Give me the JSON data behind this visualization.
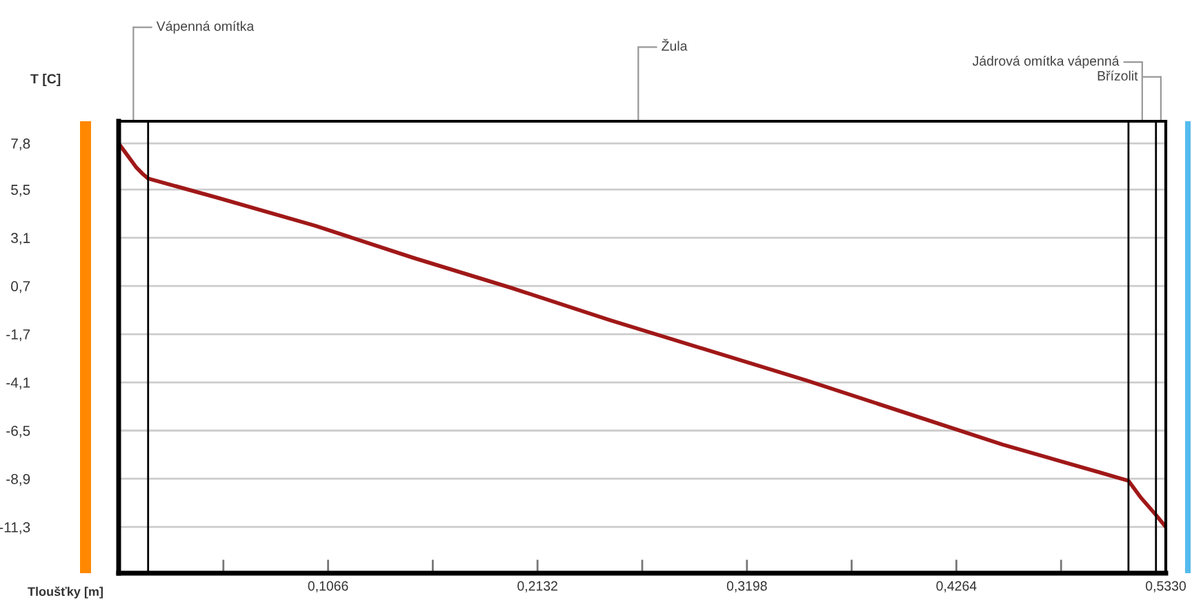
{
  "chart_data": {
    "type": "line",
    "xlabel": "Tloušťky [m]",
    "ylabel": "T [C]",
    "x": [
      0,
      0.003,
      0.006,
      0.009,
      0.012,
      0.015,
      0.05,
      0.1,
      0.15,
      0.2,
      0.25,
      0.3,
      0.35,
      0.4,
      0.45,
      0.5,
      0.514,
      0.52,
      0.528,
      0.533
    ],
    "series": [
      {
        "color": "#a01818",
        "values": [
          7.8,
          7.4,
          7.0,
          6.6,
          6.3,
          6.05,
          5.1,
          3.7,
          2.1,
          0.6,
          -1.0,
          -2.5,
          -4.0,
          -5.6,
          -7.2,
          -8.6,
          -9.0,
          -9.8,
          -10.7,
          -11.3
        ]
      }
    ],
    "xlim": [
      0,
      0.533
    ],
    "ylim": [
      -13.6,
      8.9
    ],
    "xticks": [
      {
        "value": 0.0533,
        "label": null
      },
      {
        "value": 0.1066,
        "label": "0,1066"
      },
      {
        "value": 0.1599,
        "label": null
      },
      {
        "value": 0.2132,
        "label": "0,2132"
      },
      {
        "value": 0.2665,
        "label": null
      },
      {
        "value": 0.3198,
        "label": "0,3198"
      },
      {
        "value": 0.3731,
        "label": null
      },
      {
        "value": 0.4264,
        "label": "0,4264"
      },
      {
        "value": 0.4797,
        "label": null
      },
      {
        "value": 0.533,
        "label": "0,5330"
      }
    ],
    "yticks": [
      {
        "value": 7.8,
        "label": "7,8"
      },
      {
        "value": 5.5,
        "label": "5,5"
      },
      {
        "value": 3.1,
        "label": "3,1"
      },
      {
        "value": 0.7,
        "label": "0,7"
      },
      {
        "value": -1.7,
        "label": "-1,7"
      },
      {
        "value": -4.1,
        "label": "-4,1"
      },
      {
        "value": -6.5,
        "label": "-6,5"
      },
      {
        "value": -8.9,
        "label": "-8,9"
      },
      {
        "value": -11.3,
        "label": "-11,3"
      }
    ],
    "grid": "y",
    "marker": "none",
    "line_style": "solid",
    "ref_lines": [
      {
        "axis": "x",
        "value": 0.015,
        "color": "#000000"
      },
      {
        "axis": "x",
        "value": 0.514,
        "color": "#000000"
      },
      {
        "axis": "x",
        "value": 0.528,
        "color": "#000000"
      }
    ],
    "annotations": [
      "Vápenná omítka",
      "Žula",
      "Jádrová omítka vápenná",
      "Břízolit"
    ]
  }
}
